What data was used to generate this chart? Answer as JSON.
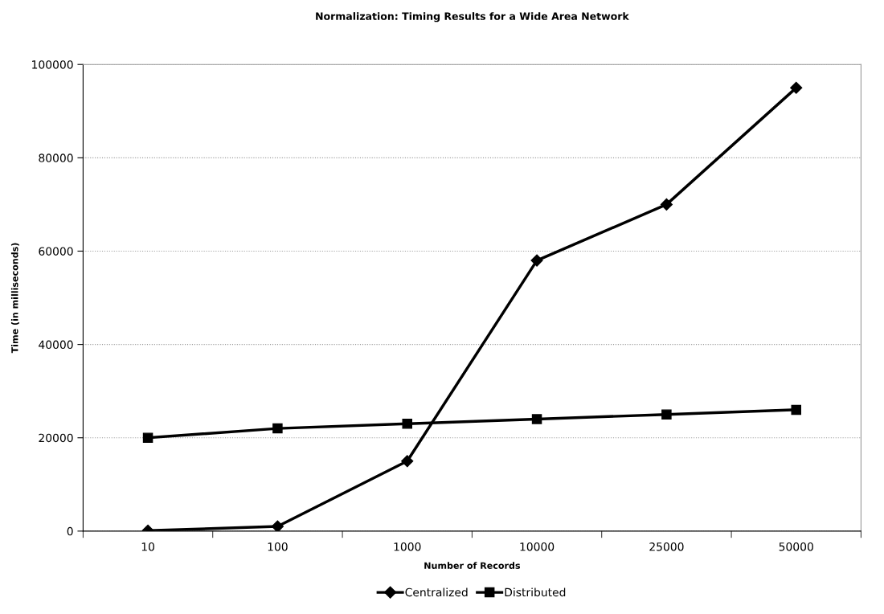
{
  "chart_data": {
    "type": "line",
    "title": "Normalization: Timing Results for a Wide Area Network",
    "xlabel": "Number of Records",
    "ylabel": "Time (in milliseconds)",
    "categories": [
      "10",
      "100",
      "1000",
      "10000",
      "25000",
      "50000"
    ],
    "series": [
      {
        "name": "Centralized",
        "color": "#000000",
        "marker": "diamond",
        "values": [
          100,
          1000,
          15000,
          58000,
          70000,
          95000
        ]
      },
      {
        "name": "Distributed",
        "color": "#000000",
        "marker": "square",
        "values": [
          20000,
          22000,
          23000,
          24000,
          25000,
          26000
        ]
      }
    ],
    "ylim": [
      0,
      100000
    ],
    "yticks": [
      0,
      20000,
      40000,
      60000,
      80000,
      100000
    ],
    "grid": "y",
    "legend": "bottom",
    "line_style": "solid"
  }
}
